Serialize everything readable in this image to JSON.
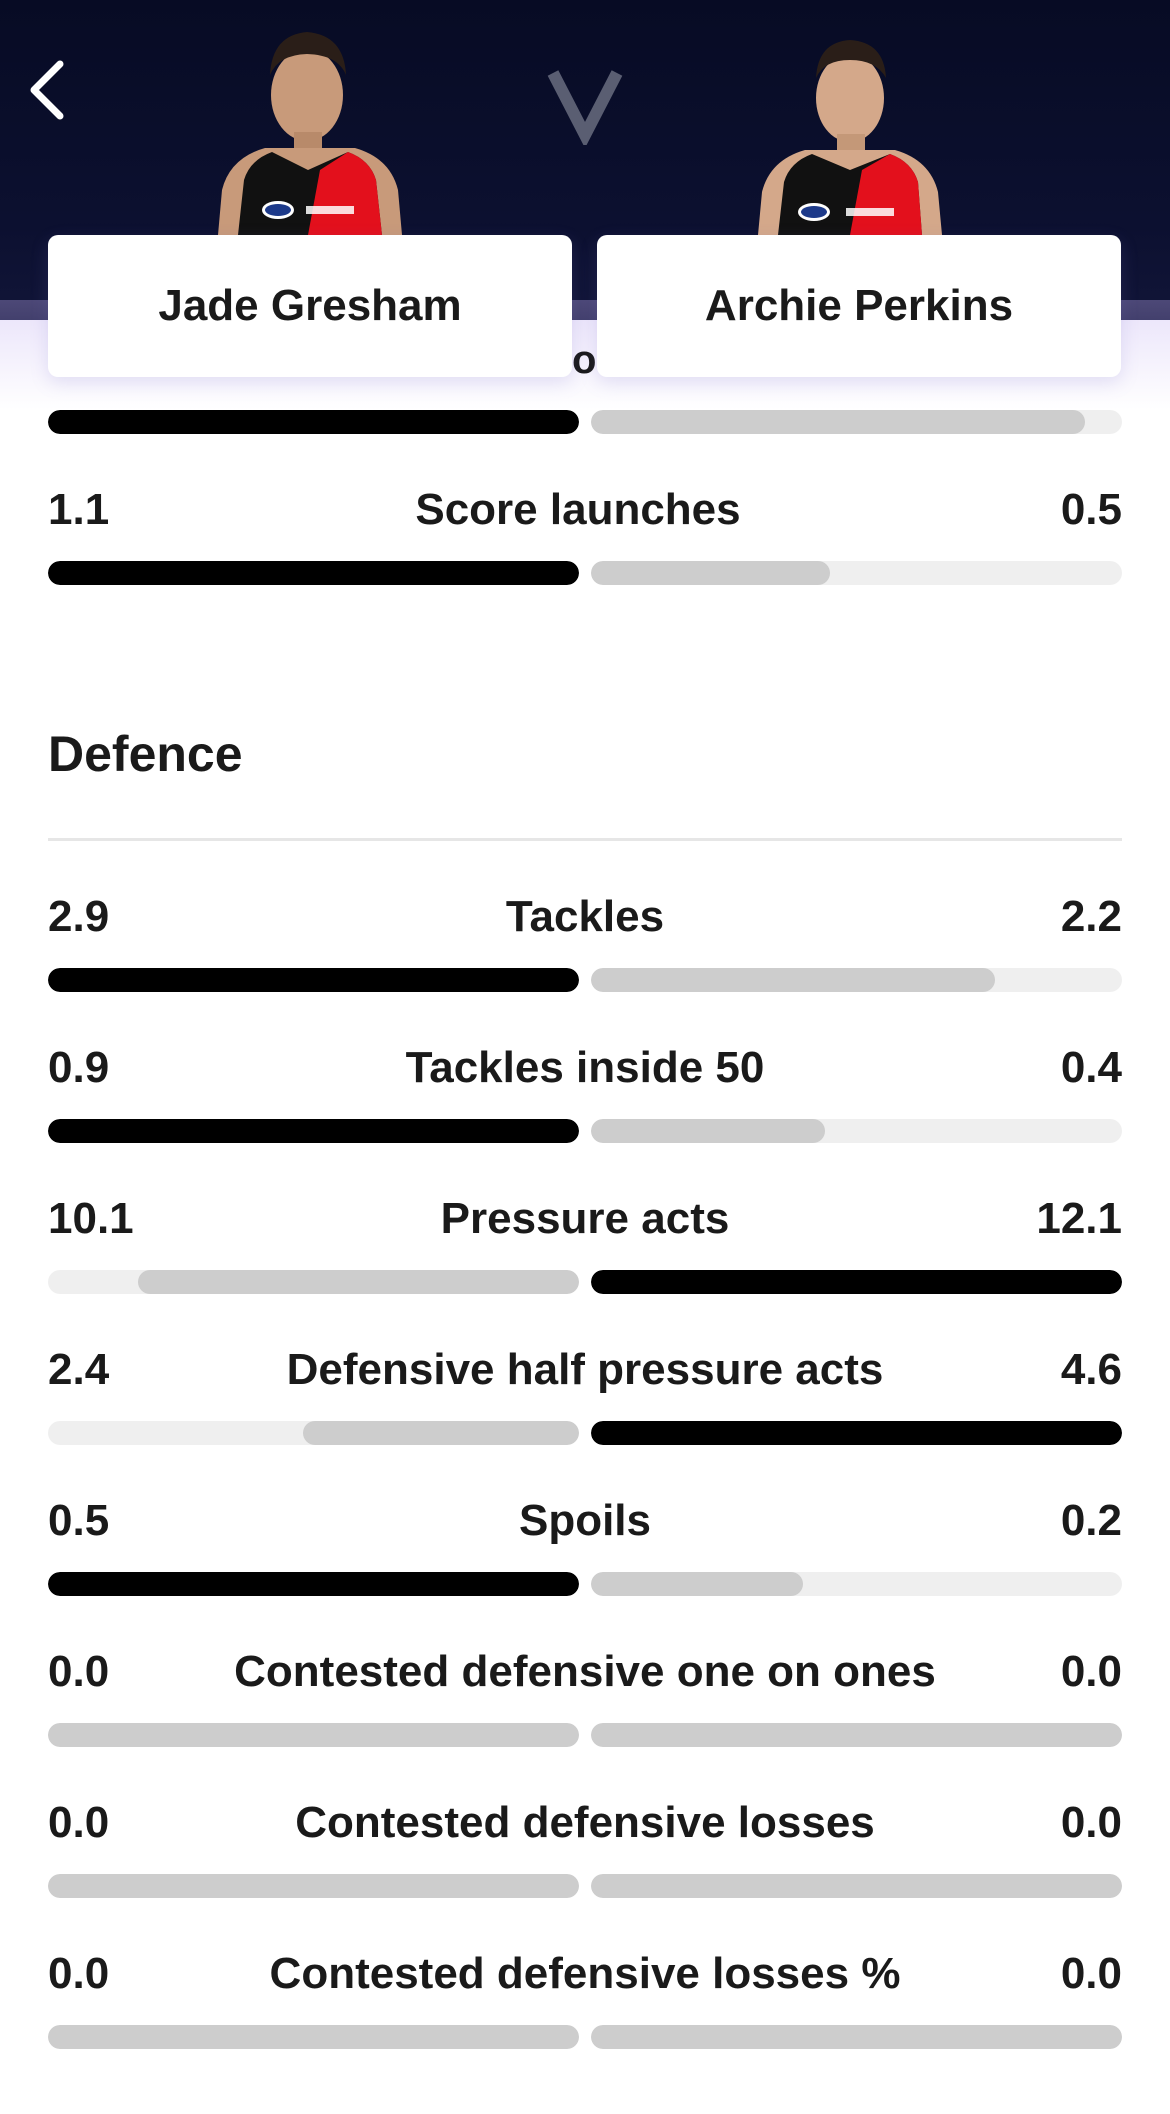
{
  "header": {
    "vs_label": "V",
    "player_left": "Jade Gresham",
    "player_right": "Archie Perkins",
    "peek_letter": "o"
  },
  "section_above": {
    "last_bar": {
      "left_fraction": 1.0,
      "right_fraction": 0.93,
      "leader": "left"
    }
  },
  "score_launches": {
    "label": "Score launches",
    "left": "1.1",
    "right": "0.5",
    "left_fraction": 1.0,
    "right_fraction": 0.45,
    "leader": "left"
  },
  "defence": {
    "title": "Defence",
    "stats": [
      {
        "label": "Tackles",
        "left": "2.9",
        "right": "2.2",
        "left_fraction": 1.0,
        "right_fraction": 0.76,
        "leader": "left"
      },
      {
        "label": "Tackles inside 50",
        "left": "0.9",
        "right": "0.4",
        "left_fraction": 1.0,
        "right_fraction": 0.44,
        "leader": "left"
      },
      {
        "label": "Pressure acts",
        "left": "10.1",
        "right": "12.1",
        "left_fraction": 0.83,
        "right_fraction": 1.0,
        "leader": "right"
      },
      {
        "label": "Defensive half pressure acts",
        "left": "2.4",
        "right": "4.6",
        "left_fraction": 0.52,
        "right_fraction": 1.0,
        "leader": "right"
      },
      {
        "label": "Spoils",
        "left": "0.5",
        "right": "0.2",
        "left_fraction": 1.0,
        "right_fraction": 0.4,
        "leader": "left"
      },
      {
        "label": "Contested defensive one on ones",
        "left": "0.0",
        "right": "0.0",
        "left_fraction": 1.0,
        "right_fraction": 1.0,
        "leader": "none"
      },
      {
        "label": "Contested defensive losses",
        "left": "0.0",
        "right": "0.0",
        "left_fraction": 1.0,
        "right_fraction": 1.0,
        "leader": "none"
      },
      {
        "label": "Contested defensive losses %",
        "left": "0.0",
        "right": "0.0",
        "left_fraction": 1.0,
        "right_fraction": 1.0,
        "leader": "none"
      }
    ]
  },
  "colors": {
    "header_bg": "#0a0e2a",
    "leader_fill": "#000000",
    "trailer_fill": "#cdcdcd",
    "track": "#efefef",
    "jersey_red": "#e3101c"
  },
  "icons": {
    "back": "chevron-left-icon",
    "versus": "versus-icon"
  }
}
